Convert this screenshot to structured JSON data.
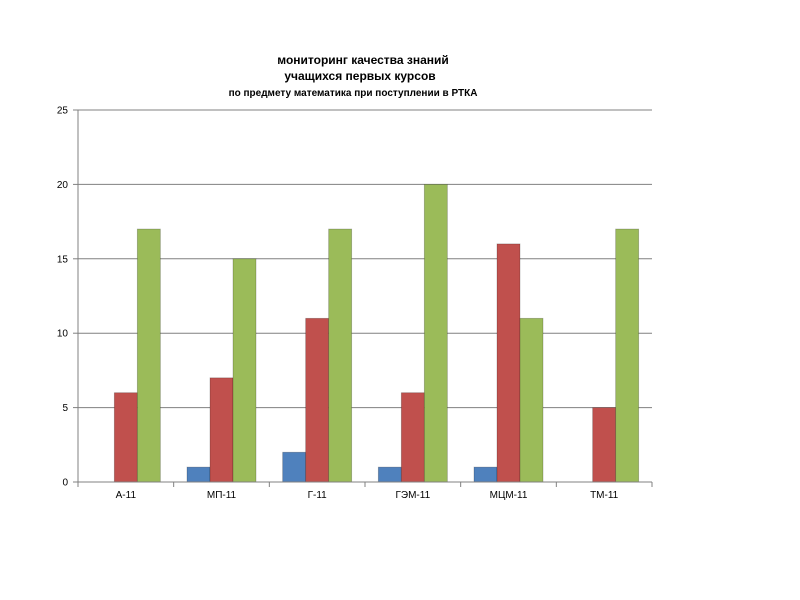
{
  "chart_data": {
    "type": "bar",
    "title": [
      "мониторинг качества знаний",
      "учащихся первых курсов",
      "по предмету математика при поступлении в РТКА"
    ],
    "categories": [
      "А-11",
      "МП-11",
      "Г-11",
      "ГЭМ-11",
      "МЦМ-11",
      "ТМ-11"
    ],
    "series": [
      {
        "values": [
          0,
          1,
          2,
          1,
          1,
          0
        ],
        "color": "#4f81bd"
      },
      {
        "values": [
          6,
          7,
          11,
          6,
          16,
          5
        ],
        "color": "#c0504d"
      },
      {
        "values": [
          17,
          15,
          17,
          20,
          11,
          17
        ],
        "color": "#9bbb59"
      }
    ],
    "ylim": [
      0,
      25
    ],
    "yticks": [
      0,
      5,
      10,
      15,
      20,
      25
    ],
    "grid": true,
    "legend": "none"
  }
}
